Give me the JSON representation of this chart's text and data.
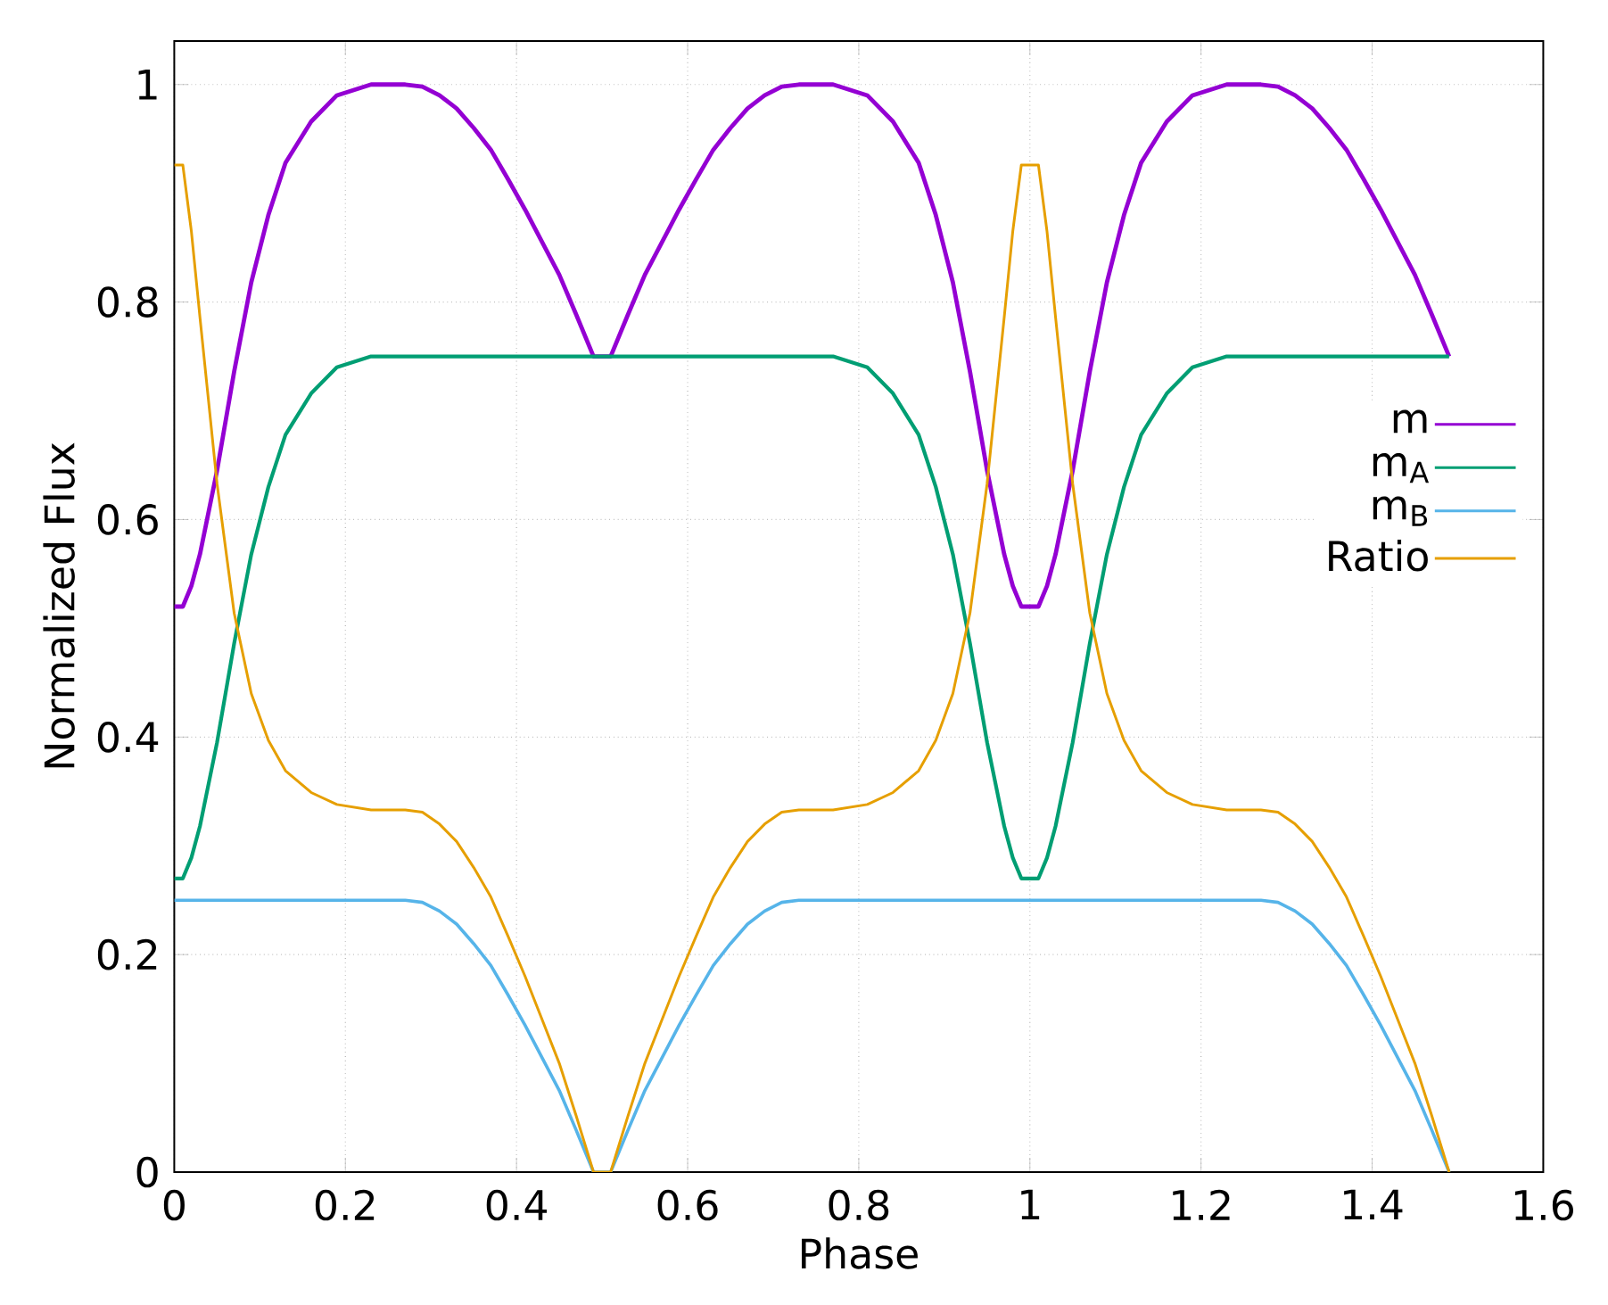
{
  "chart_data": {
    "type": "line",
    "xlabel": "Phase",
    "ylabel": "Normalized Flux",
    "x": [
      0,
      0.01,
      0.02,
      0.03,
      0.05,
      0.07,
      0.09,
      0.11,
      0.13,
      0.16,
      0.19,
      0.23,
      0.25,
      0.27,
      0.29,
      0.31,
      0.33,
      0.35,
      0.37,
      0.39,
      0.41,
      0.43,
      0.45,
      0.47,
      0.49,
      0.5,
      0.51,
      0.53,
      0.55,
      0.57,
      0.59,
      0.61,
      0.63,
      0.65,
      0.67,
      0.69,
      0.71,
      0.73,
      0.75,
      0.77,
      0.81,
      0.84,
      0.87,
      0.89,
      0.91,
      0.93,
      0.95,
      0.97,
      0.98,
      0.99,
      1.0,
      1.01,
      1.02,
      1.03,
      1.05,
      1.07,
      1.09,
      1.11,
      1.13,
      1.16,
      1.19,
      1.23,
      1.25,
      1.27,
      1.29,
      1.31,
      1.33,
      1.35,
      1.37,
      1.39,
      1.41,
      1.43,
      1.45,
      1.47,
      1.49
    ],
    "series": [
      {
        "name": "m",
        "color": "#9400d3",
        "values": [
          0.52,
          0.52,
          0.539,
          0.568,
          0.645,
          0.736,
          0.818,
          0.88,
          0.928,
          0.966,
          0.99,
          1,
          1,
          1,
          0.998,
          0.99,
          0.978,
          0.96,
          0.94,
          0.913,
          0.885,
          0.855,
          0.825,
          0.788,
          0.75,
          0.75,
          0.75,
          0.788,
          0.825,
          0.855,
          0.885,
          0.913,
          0.94,
          0.96,
          0.978,
          0.99,
          0.998,
          1,
          1,
          1,
          0.99,
          0.966,
          0.928,
          0.88,
          0.818,
          0.736,
          0.645,
          0.568,
          0.539,
          0.52,
          0.52,
          0.52,
          0.539,
          0.568,
          0.645,
          0.736,
          0.818,
          0.88,
          0.928,
          0.966,
          0.99,
          1,
          1,
          1,
          0.998,
          0.99,
          0.978,
          0.96,
          0.94,
          0.913,
          0.885,
          0.855,
          0.825,
          0.788,
          0.75
        ]
      },
      {
        "name": "m$_{A}$",
        "color": "#009e73",
        "values": [
          0.27,
          0.27,
          0.289,
          0.318,
          0.395,
          0.486,
          0.568,
          0.63,
          0.678,
          0.716,
          0.74,
          0.75,
          0.75,
          0.75,
          0.75,
          0.75,
          0.75,
          0.75,
          0.75,
          0.75,
          0.75,
          0.75,
          0.75,
          0.75,
          0.75,
          0.75,
          0.75,
          0.75,
          0.75,
          0.75,
          0.75,
          0.75,
          0.75,
          0.75,
          0.75,
          0.75,
          0.75,
          0.75,
          0.75,
          0.75,
          0.74,
          0.716,
          0.678,
          0.63,
          0.568,
          0.486,
          0.395,
          0.318,
          0.289,
          0.27,
          0.27,
          0.27,
          0.289,
          0.318,
          0.395,
          0.486,
          0.568,
          0.63,
          0.678,
          0.716,
          0.74,
          0.75,
          0.75,
          0.75,
          0.75,
          0.75,
          0.75,
          0.75,
          0.75,
          0.75,
          0.75,
          0.75,
          0.75,
          0.75,
          0.75
        ]
      },
      {
        "name": "m$_{B}$",
        "color": "#56b4e9",
        "values": [
          0.25,
          0.25,
          0.25,
          0.25,
          0.25,
          0.25,
          0.25,
          0.25,
          0.25,
          0.25,
          0.25,
          0.25,
          0.25,
          0.25,
          0.248,
          0.24,
          0.228,
          0.21,
          0.19,
          0.163,
          0.135,
          0.105,
          0.075,
          0.038,
          0,
          0,
          0,
          0.038,
          0.075,
          0.105,
          0.135,
          0.163,
          0.19,
          0.21,
          0.228,
          0.24,
          0.248,
          0.25,
          0.25,
          0.25,
          0.25,
          0.25,
          0.25,
          0.25,
          0.25,
          0.25,
          0.25,
          0.25,
          0.25,
          0.25,
          0.25,
          0.25,
          0.25,
          0.25,
          0.25,
          0.25,
          0.25,
          0.25,
          0.25,
          0.25,
          0.25,
          0.25,
          0.25,
          0.25,
          0.248,
          0.24,
          0.228,
          0.21,
          0.19,
          0.163,
          0.135,
          0.105,
          0.075,
          0.038,
          0
        ]
      },
      {
        "name": "Ratio",
        "color": "#e69f00",
        "values": [
          0.926,
          0.926,
          0.865,
          0.786,
          0.633,
          0.514,
          0.44,
          0.397,
          0.369,
          0.349,
          0.338,
          0.333,
          0.333,
          0.333,
          0.331,
          0.32,
          0.304,
          0.28,
          0.253,
          0.217,
          0.18,
          0.14,
          0.1,
          0.051,
          0,
          0,
          0,
          0.051,
          0.1,
          0.14,
          0.18,
          0.217,
          0.253,
          0.28,
          0.304,
          0.32,
          0.331,
          0.333,
          0.333,
          0.333,
          0.338,
          0.349,
          0.369,
          0.397,
          0.44,
          0.514,
          0.633,
          0.786,
          0.865,
          0.926,
          0.926,
          0.926,
          0.865,
          0.786,
          0.633,
          0.514,
          0.44,
          0.397,
          0.369,
          0.349,
          0.338,
          0.333,
          0.333,
          0.333,
          0.331,
          0.32,
          0.304,
          0.28,
          0.253,
          0.217,
          0.18,
          0.14,
          0.1,
          0.051,
          0
        ]
      }
    ],
    "xlim": [
      0,
      1.6
    ],
    "ylim": [
      0,
      1.04
    ],
    "xticks": [
      0,
      0.2,
      0.4,
      0.6,
      0.8,
      1,
      1.2,
      1.4,
      1.6
    ],
    "yticks": [
      0,
      0.2,
      0.4,
      0.6,
      0.8,
      1
    ],
    "grid": true,
    "legend": "right",
    "marker": "none",
    "line_style": "solid"
  }
}
